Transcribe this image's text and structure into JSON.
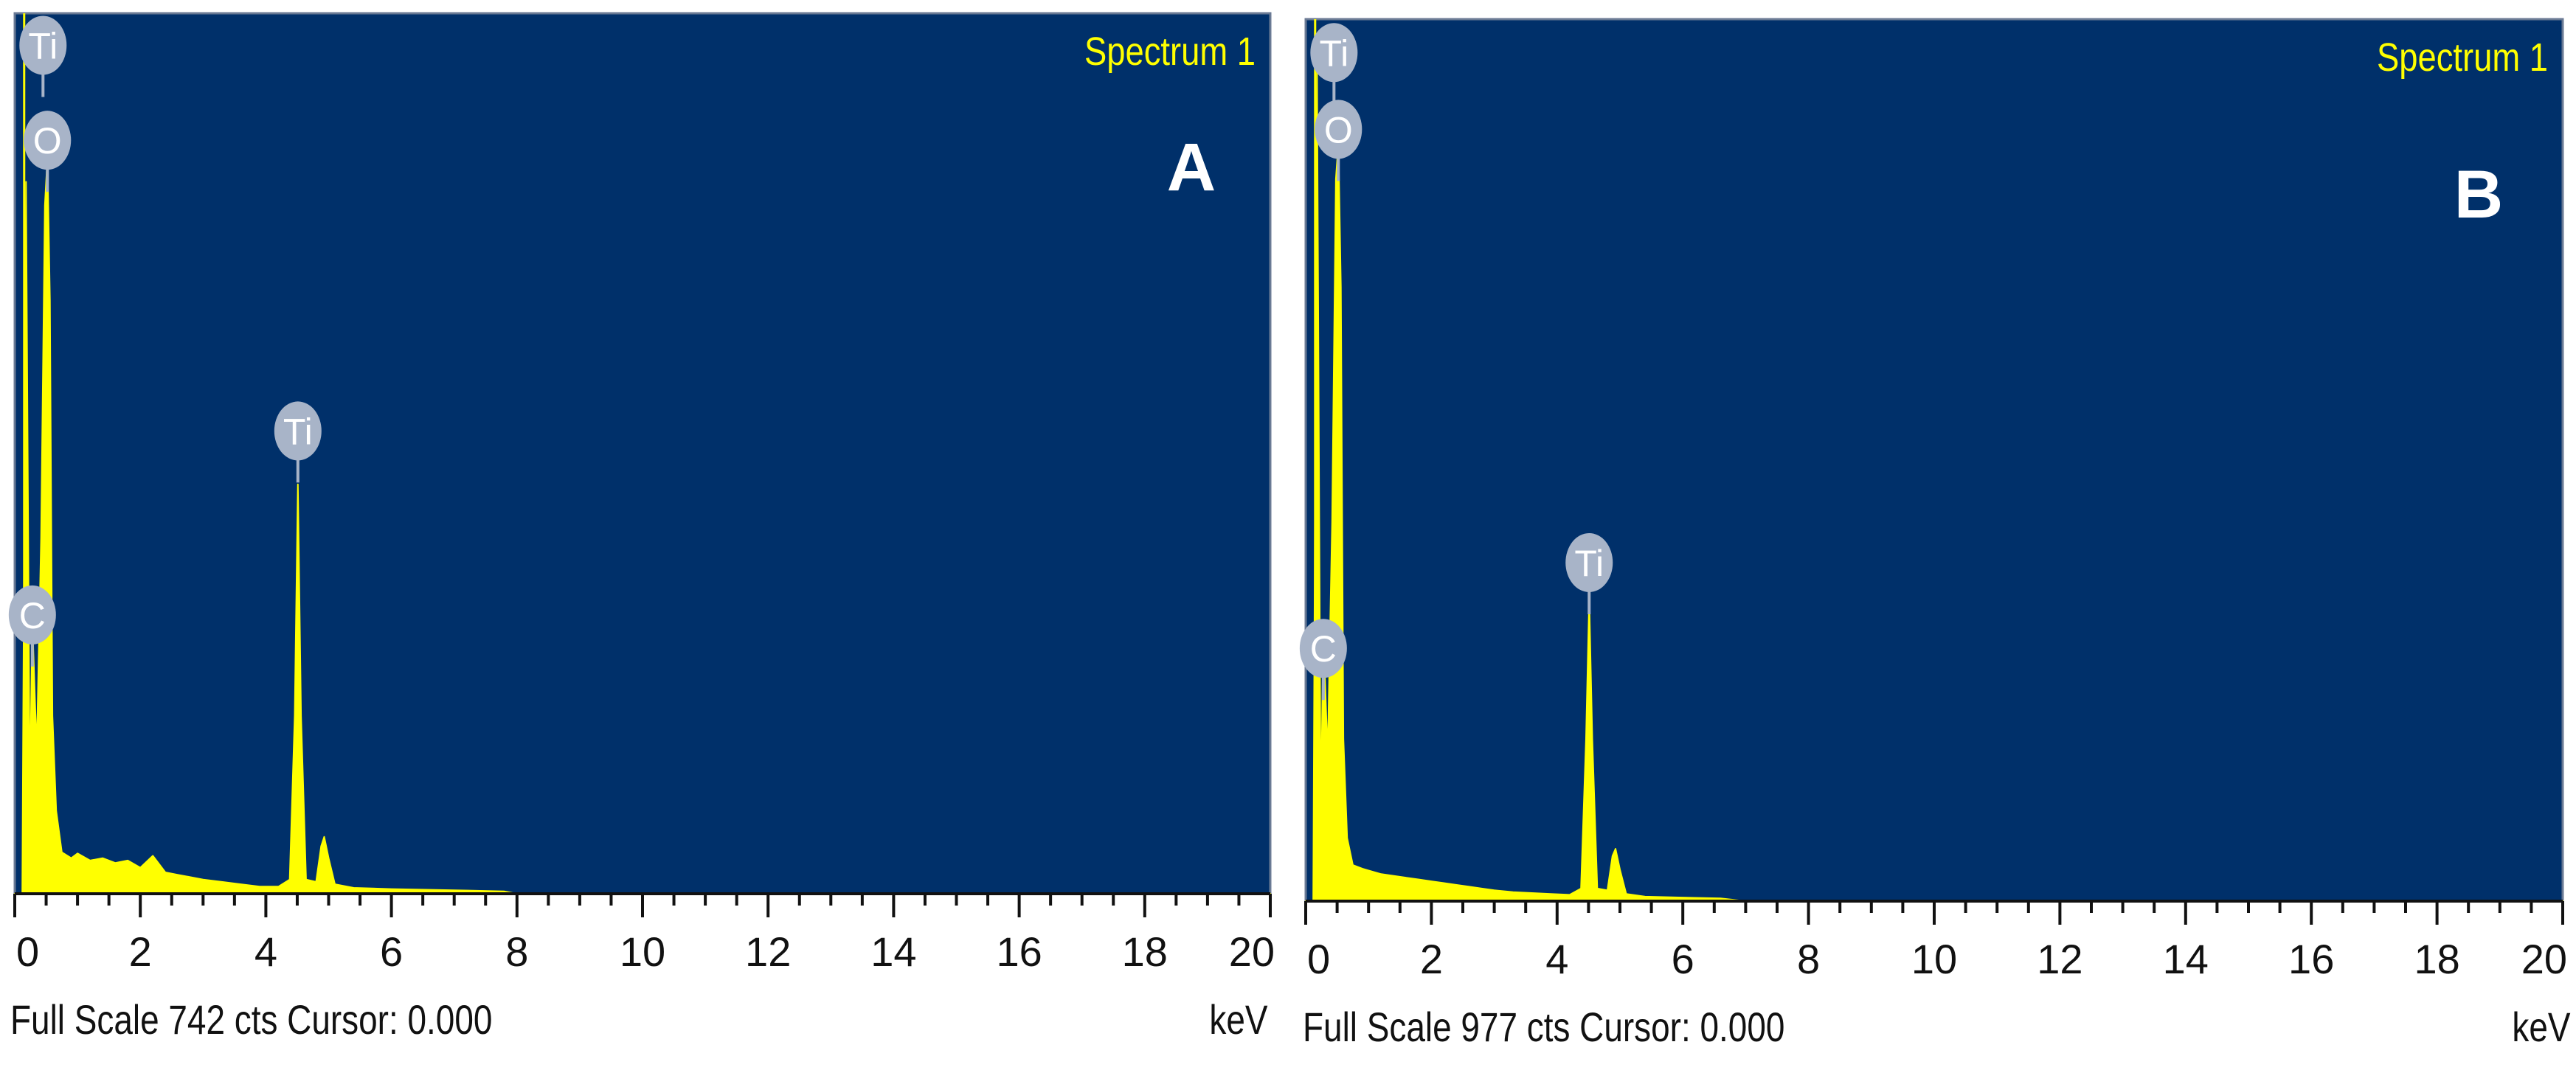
{
  "colors": {
    "background": "#00306a",
    "spectrum": "#ffff00",
    "marker": "#a8b4c8",
    "axis": "#111111"
  },
  "chart_data": [
    {
      "type": "area",
      "panel_label": "A",
      "spectrum_label": "Spectrum 1",
      "full_scale_text": "Full Scale 742 cts Cursor: 0.000",
      "xlabel": "keV",
      "xlim": [
        0,
        20
      ],
      "ylim": [
        0,
        742
      ],
      "x_ticks": [
        "0",
        "2",
        "4",
        "6",
        "8",
        "10",
        "12",
        "14",
        "16",
        "18",
        "20"
      ],
      "element_markers": [
        {
          "label": "Ti",
          "energy": 0.45,
          "counts": 715
        },
        {
          "label": "O",
          "energy": 0.52,
          "counts": 635
        },
        {
          "label": "C",
          "energy": 0.28,
          "counts": 235
        },
        {
          "label": "Ti",
          "energy": 4.51,
          "counts": 390
        }
      ],
      "spectrum": {
        "x": [
          0,
          0.12,
          0.18,
          0.24,
          0.28,
          0.35,
          0.42,
          0.48,
          0.52,
          0.56,
          0.6,
          0.66,
          0.75,
          0.9,
          1.0,
          1.2,
          1.4,
          1.6,
          1.8,
          2.0,
          2.2,
          2.4,
          2.6,
          2.8,
          3.0,
          3.3,
          3.6,
          3.9,
          4.2,
          4.38,
          4.46,
          4.51,
          4.56,
          4.64,
          4.8,
          4.88,
          4.93,
          5.0,
          5.1,
          5.4,
          6.0,
          7.0,
          7.8,
          8.0,
          20.0
        ],
        "y": [
          0,
          0,
          600,
          80,
          230,
          120,
          300,
          580,
          620,
          500,
          150,
          70,
          35,
          30,
          34,
          28,
          30,
          26,
          28,
          22,
          32,
          18,
          16,
          14,
          12,
          10,
          8,
          6,
          6,
          12,
          150,
          345,
          150,
          12,
          10,
          40,
          48,
          30,
          8,
          5,
          4,
          3,
          2,
          0,
          0
        ]
      }
    },
    {
      "type": "area",
      "panel_label": "B",
      "spectrum_label": "Spectrum 1",
      "full_scale_text": "Full Scale 977 cts Cursor: 0.000",
      "xlabel": "keV",
      "xlim": [
        0,
        20
      ],
      "ylim": [
        0,
        977
      ],
      "x_ticks": [
        "0",
        "2",
        "4",
        "6",
        "8",
        "10",
        "12",
        "14",
        "16",
        "18",
        "20"
      ],
      "element_markers": [
        {
          "label": "Ti",
          "energy": 0.45,
          "counts": 940
        },
        {
          "label": "O",
          "energy": 0.52,
          "counts": 855
        },
        {
          "label": "C",
          "energy": 0.28,
          "counts": 280
        },
        {
          "label": "Ti",
          "energy": 4.51,
          "counts": 375
        }
      ],
      "spectrum": {
        "x": [
          0,
          0.12,
          0.18,
          0.24,
          0.28,
          0.35,
          0.42,
          0.48,
          0.52,
          0.56,
          0.6,
          0.66,
          0.75,
          0.9,
          1.0,
          1.2,
          1.4,
          1.6,
          1.8,
          2.0,
          2.2,
          2.4,
          2.6,
          2.8,
          3.0,
          3.3,
          3.6,
          3.9,
          4.2,
          4.38,
          4.46,
          4.51,
          4.56,
          4.64,
          4.8,
          4.88,
          4.93,
          5.0,
          5.1,
          5.4,
          6.0,
          6.6,
          7.0,
          20.0
        ],
        "y": [
          0,
          0,
          930,
          90,
          300,
          160,
          420,
          800,
          840,
          680,
          180,
          70,
          40,
          36,
          34,
          30,
          28,
          26,
          24,
          22,
          20,
          18,
          16,
          14,
          12,
          10,
          9,
          8,
          7,
          14,
          180,
          335,
          180,
          14,
          12,
          50,
          58,
          35,
          8,
          5,
          4,
          3,
          0,
          0
        ]
      }
    }
  ]
}
